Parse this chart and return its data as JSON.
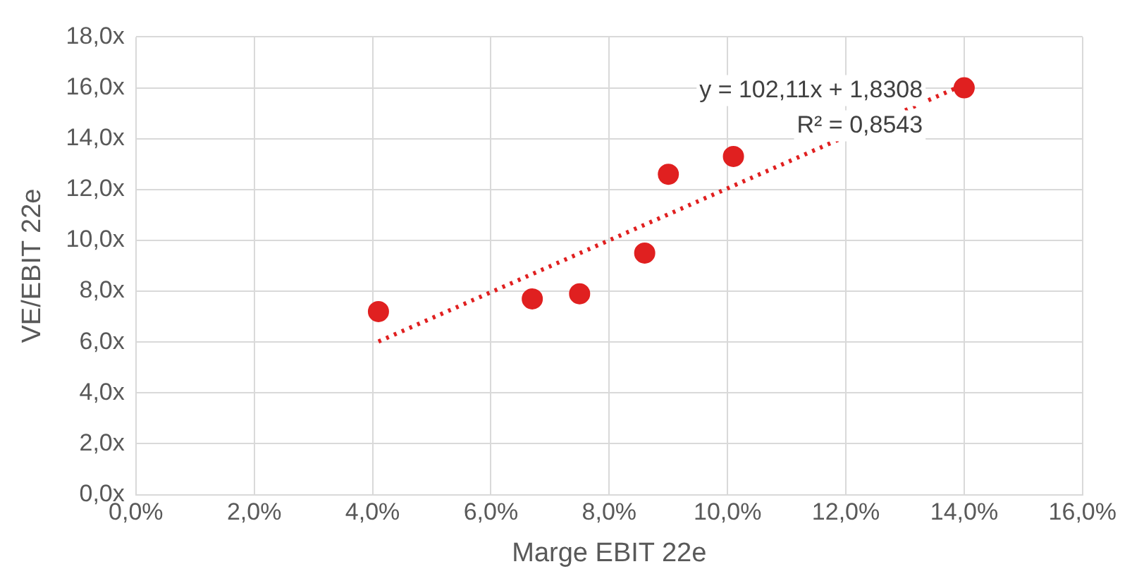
{
  "chart_data": {
    "type": "scatter",
    "xlabel": "Marge EBIT 22e",
    "ylabel": "VE/EBIT 22e",
    "xlim": [
      0,
      0.16
    ],
    "xticks": [
      {
        "value": 0,
        "label": "0,0%"
      },
      {
        "value": 0.02,
        "label": "2,0%"
      },
      {
        "value": 0.04,
        "label": "4,0%"
      },
      {
        "value": 0.06,
        "label": "6,0%"
      },
      {
        "value": 0.08,
        "label": "8,0%"
      },
      {
        "value": 0.1,
        "label": "10,0%"
      },
      {
        "value": 0.12,
        "label": "12,0%"
      },
      {
        "value": 0.14,
        "label": "14,0%"
      },
      {
        "value": 0.16,
        "label": "16,0%"
      }
    ],
    "ylim": [
      0,
      18
    ],
    "yticks": [
      {
        "value": 0,
        "label": "0,0x"
      },
      {
        "value": 2,
        "label": "2,0x"
      },
      {
        "value": 4,
        "label": "4,0x"
      },
      {
        "value": 6,
        "label": "6,0x"
      },
      {
        "value": 8,
        "label": "8,0x"
      },
      {
        "value": 10,
        "label": "10,0x"
      },
      {
        "value": 12,
        "label": "12,0x"
      },
      {
        "value": 14,
        "label": "14,0x"
      },
      {
        "value": 16,
        "label": "16,0x"
      },
      {
        "value": 18,
        "label": "18,0x"
      }
    ],
    "grid": true,
    "legend": false,
    "marker": "circle",
    "series": [
      {
        "type": "scatter",
        "color": "#e02020",
        "x": [
          0.041,
          0.067,
          0.075,
          0.086,
          0.09,
          0.101,
          0.14
        ],
        "values": [
          7.2,
          7.7,
          7.9,
          9.5,
          12.6,
          13.3,
          16.0
        ]
      },
      {
        "type": "line",
        "color": "#e02020",
        "line_style": "dotted",
        "marker": "none",
        "x": [
          0.041,
          0.14
        ],
        "values": [
          6.02,
          16.13
        ]
      }
    ],
    "annotations": [
      "y = 102,11x + 1,8308",
      "R² = 0,8543"
    ]
  }
}
